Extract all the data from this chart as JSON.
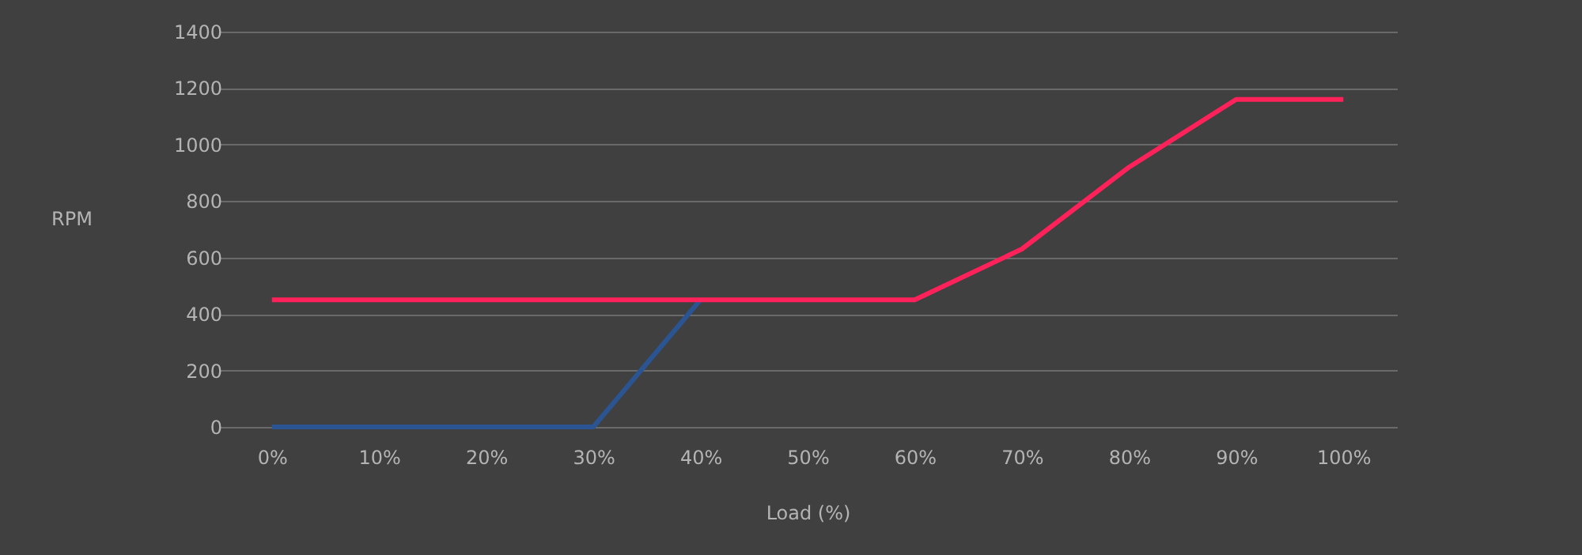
{
  "chart_data": {
    "type": "line",
    "xlabel": "Load (%)",
    "ylabel": "RPM",
    "categories": [
      "0%",
      "10%",
      "20%",
      "30%",
      "40%",
      "50%",
      "60%",
      "70%",
      "80%",
      "90%",
      "100%"
    ],
    "series": [
      {
        "color": "#2b5592",
        "values": [
          0,
          0,
          0,
          0,
          450,
          null,
          null,
          null,
          null,
          null,
          null
        ]
      },
      {
        "color": "#ff2159",
        "values": [
          450,
          450,
          450,
          450,
          450,
          450,
          450,
          630,
          920,
          1160,
          1160
        ]
      }
    ],
    "ylim": [
      0,
      1400
    ],
    "yticks": [
      0,
      200,
      400,
      600,
      800,
      1000,
      1200,
      1400
    ],
    "grid": "y",
    "marker": "none",
    "line_style": "solid"
  }
}
